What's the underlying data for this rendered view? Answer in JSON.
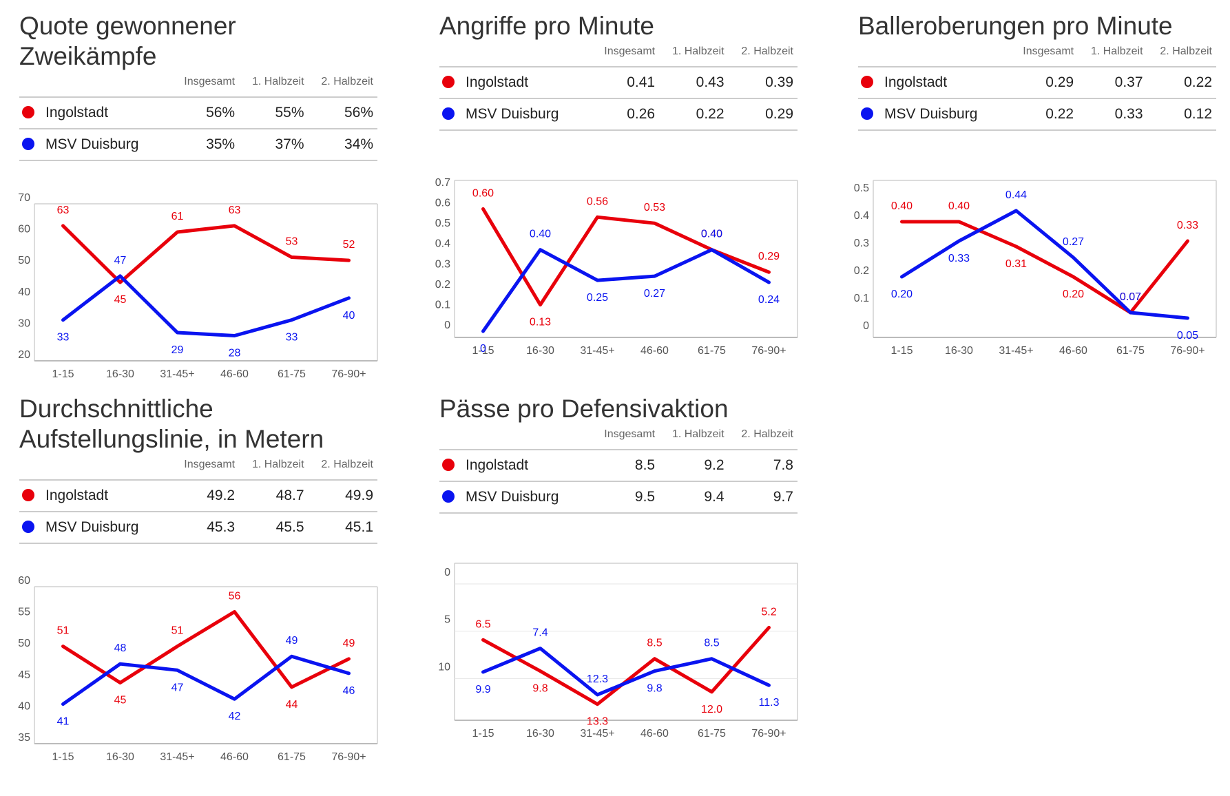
{
  "colors": {
    "home": "#e8000b",
    "away": "#0a14f0"
  },
  "columns": [
    "Insgesamt",
    "1. Halbzeit",
    "2. Halbzeit"
  ],
  "teams": [
    "Ingolstadt",
    "MSV Duisburg"
  ],
  "panels": [
    {
      "title_lines": [
        "Quote gewonnener",
        "Zweikämpfe"
      ],
      "table": [
        [
          "56%",
          "55%",
          "56%"
        ],
        [
          "35%",
          "37%",
          "34%"
        ]
      ],
      "chart_data": {
        "type": "line",
        "categories": [
          "1-15",
          "16-30",
          "31-45+",
          "46-60",
          "61-75",
          "76-90+"
        ],
        "yticks": [
          "70",
          "60",
          "50",
          "40",
          "30",
          "20"
        ],
        "ylim": [
          20,
          70
        ],
        "inverted": false,
        "series": [
          {
            "name": "Ingolstadt",
            "values": [
              63,
              45,
              61,
              63,
              53,
              52
            ],
            "labels": [
              "63",
              "45",
              "61",
              "63",
              "53",
              "52"
            ]
          },
          {
            "name": "MSV Duisburg",
            "values": [
              33,
              47,
              29,
              28,
              33,
              40
            ],
            "labels": [
              "33",
              "47",
              "29",
              "28",
              "33",
              "40"
            ]
          }
        ]
      }
    },
    {
      "title_lines": [
        "Angriffe pro Minute"
      ],
      "table": [
        [
          "0.41",
          "0.43",
          "0.39"
        ],
        [
          "0.26",
          "0.22",
          "0.29"
        ]
      ],
      "chart_data": {
        "type": "line",
        "categories": [
          "1-15",
          "16-30",
          "31-45+",
          "46-60",
          "61-75",
          "76-90+"
        ],
        "yticks": [
          "0.7",
          "0.6",
          "0.5",
          "0.4",
          "0.3",
          "0.2",
          "0.1",
          "0"
        ],
        "ylim": [
          -0.03,
          0.74
        ],
        "inverted": false,
        "series": [
          {
            "name": "Ingolstadt",
            "values": [
              0.6,
              0.13,
              0.56,
              0.53,
              0.4,
              0.29
            ],
            "labels": [
              "0.60",
              "0.13",
              "0.56",
              "0.53",
              "0.40",
              "0.29"
            ]
          },
          {
            "name": "MSV Duisburg",
            "values": [
              0,
              0.4,
              0.25,
              0.27,
              0.4,
              0.24
            ],
            "labels": [
              "0",
              "0.40",
              "0.25",
              "0.27",
              "0.40",
              "0.24"
            ]
          }
        ]
      }
    },
    {
      "title_lines": [
        "Balleroberungen pro Minute"
      ],
      "table": [
        [
          "0.29",
          "0.37",
          "0.22"
        ],
        [
          "0.22",
          "0.33",
          "0.12"
        ]
      ],
      "chart_data": {
        "type": "line",
        "categories": [
          "1-15",
          "16-30",
          "31-45+",
          "46-60",
          "61-75",
          "76-90+"
        ],
        "yticks": [
          "0.5",
          "0.4",
          "0.3",
          "0.2",
          "0.1",
          "0"
        ],
        "ylim": [
          -0.02,
          0.55
        ],
        "inverted": false,
        "series": [
          {
            "name": "Ingolstadt",
            "values": [
              0.4,
              0.4,
              0.31,
              0.2,
              0.07,
              0.33
            ],
            "labels": [
              "0.40",
              "0.40",
              "0.31",
              "0.20",
              "0.07",
              "0.33"
            ]
          },
          {
            "name": "MSV Duisburg",
            "values": [
              0.2,
              0.33,
              0.44,
              0.27,
              0.07,
              0.05
            ],
            "labels": [
              "0.20",
              "0.33",
              "0.44",
              "0.27",
              "0.07",
              "0.05"
            ]
          }
        ]
      }
    },
    {
      "title_lines": [
        "Durchschnittliche",
        "Aufstellungslinie, in Metern"
      ],
      "table": [
        [
          "49.2",
          "48.7",
          "49.9"
        ],
        [
          "45.3",
          "45.5",
          "45.1"
        ]
      ],
      "chart_data": {
        "type": "line",
        "categories": [
          "1-15",
          "16-30",
          "31-45+",
          "46-60",
          "61-75",
          "76-90+"
        ],
        "yticks": [
          "60",
          "55",
          "50",
          "45",
          "40",
          "35"
        ],
        "ylim": [
          35,
          60
        ],
        "inverted": false,
        "series": [
          {
            "name": "Ingolstadt",
            "values": [
              50.5,
              44.7,
              50.5,
              56,
              44,
              48.5
            ],
            "labels": [
              "51",
              "45",
              "51",
              "56",
              "44",
              "49"
            ]
          },
          {
            "name": "MSV Duisburg",
            "values": [
              41.3,
              47.7,
              46.7,
              42.1,
              48.9,
              46.2
            ],
            "labels": [
              "41",
              "48",
              "47",
              "42",
              "49",
              "46"
            ]
          }
        ]
      }
    },
    {
      "title_lines": [
        "Pässe pro Defensivaktion"
      ],
      "table": [
        [
          "8.5",
          "9.2",
          "7.8"
        ],
        [
          "9.5",
          "9.4",
          "9.7"
        ]
      ],
      "chart_data": {
        "type": "line",
        "categories": [
          "1-15",
          "16-30",
          "31-45+",
          "46-60",
          "61-75",
          "76-90+"
        ],
        "yticks": [
          "0",
          "5",
          "10"
        ],
        "ytick_values": [
          0,
          5,
          10
        ],
        "ylim": [
          -1.6,
          15
        ],
        "inverted": true,
        "series": [
          {
            "name": "Ingolstadt",
            "values": [
              6.5,
              9.8,
              13.3,
              8.5,
              12.0,
              5.2
            ],
            "labels": [
              "6.5",
              "9.8",
              "13.3",
              "8.5",
              "12.0",
              "5.2"
            ]
          },
          {
            "name": "MSV Duisburg",
            "values": [
              9.9,
              7.4,
              12.3,
              9.8,
              8.5,
              11.3
            ],
            "labels": [
              "9.9",
              "7.4",
              "12.3",
              "9.8",
              "8.5",
              "11.3"
            ]
          }
        ]
      }
    }
  ]
}
